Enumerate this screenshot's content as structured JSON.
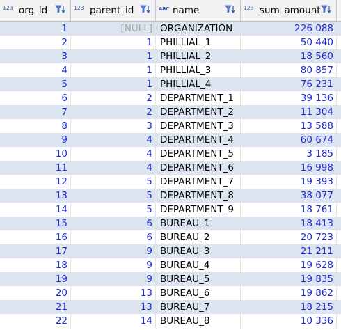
{
  "columns": [
    {
      "type_label": "123",
      "name": "org_id"
    },
    {
      "type_label": "123",
      "name": "parent_id"
    },
    {
      "type_label": "ABC",
      "name": "name"
    },
    {
      "type_label": "123",
      "name": "sum_amount"
    }
  ],
  "rows": [
    {
      "org_id": "1",
      "parent_id": "[NULL]",
      "name": "ORGANIZATION",
      "sum_amount": "226 088"
    },
    {
      "org_id": "2",
      "parent_id": "1",
      "name": "PHILLIAL_1",
      "sum_amount": "50 440"
    },
    {
      "org_id": "3",
      "parent_id": "1",
      "name": "PHILLIAL_2",
      "sum_amount": "18 560"
    },
    {
      "org_id": "4",
      "parent_id": "1",
      "name": "PHILLIAL_3",
      "sum_amount": "80 857"
    },
    {
      "org_id": "5",
      "parent_id": "1",
      "name": "PHILLIAL_4",
      "sum_amount": "76 231"
    },
    {
      "org_id": "6",
      "parent_id": "2",
      "name": "DEPARTMENT_1",
      "sum_amount": "39 136"
    },
    {
      "org_id": "7",
      "parent_id": "2",
      "name": "DEPARTMENT_2",
      "sum_amount": "11 304"
    },
    {
      "org_id": "8",
      "parent_id": "3",
      "name": "DEPARTMENT_3",
      "sum_amount": "13 588"
    },
    {
      "org_id": "9",
      "parent_id": "4",
      "name": "DEPARTMENT_4",
      "sum_amount": "60 674"
    },
    {
      "org_id": "10",
      "parent_id": "4",
      "name": "DEPARTMENT_5",
      "sum_amount": "3 185"
    },
    {
      "org_id": "11",
      "parent_id": "4",
      "name": "DEPARTMENT_6",
      "sum_amount": "16 998"
    },
    {
      "org_id": "12",
      "parent_id": "5",
      "name": "DEPARTMENT_7",
      "sum_amount": "19 393"
    },
    {
      "org_id": "13",
      "parent_id": "5",
      "name": "DEPARTMENT_8",
      "sum_amount": "38 077"
    },
    {
      "org_id": "14",
      "parent_id": "5",
      "name": "DEPARTMENT_9",
      "sum_amount": "18 761"
    },
    {
      "org_id": "15",
      "parent_id": "6",
      "name": "BUREAU_1",
      "sum_amount": "18 413"
    },
    {
      "org_id": "16",
      "parent_id": "6",
      "name": "BUREAU_2",
      "sum_amount": "20 723"
    },
    {
      "org_id": "17",
      "parent_id": "9",
      "name": "BUREAU_3",
      "sum_amount": "21 211"
    },
    {
      "org_id": "18",
      "parent_id": "9",
      "name": "BUREAU_4",
      "sum_amount": "19 628"
    },
    {
      "org_id": "19",
      "parent_id": "9",
      "name": "BUREAU_5",
      "sum_amount": "19 835"
    },
    {
      "org_id": "20",
      "parent_id": "13",
      "name": "BUREAU_6",
      "sum_amount": "19 862"
    },
    {
      "org_id": "21",
      "parent_id": "13",
      "name": "BUREAU_7",
      "sum_amount": "18 215"
    },
    {
      "org_id": "22",
      "parent_id": "14",
      "name": "BUREAU_8",
      "sum_amount": "10 336"
    }
  ],
  "colors": {
    "accent": "#1d2bd6",
    "row_alt": "#dce4f0",
    "null_text": "#a9a9a9",
    "type_icon": "#3a5fb0"
  },
  "icons": {
    "filter": "filter-sort-icon"
  }
}
